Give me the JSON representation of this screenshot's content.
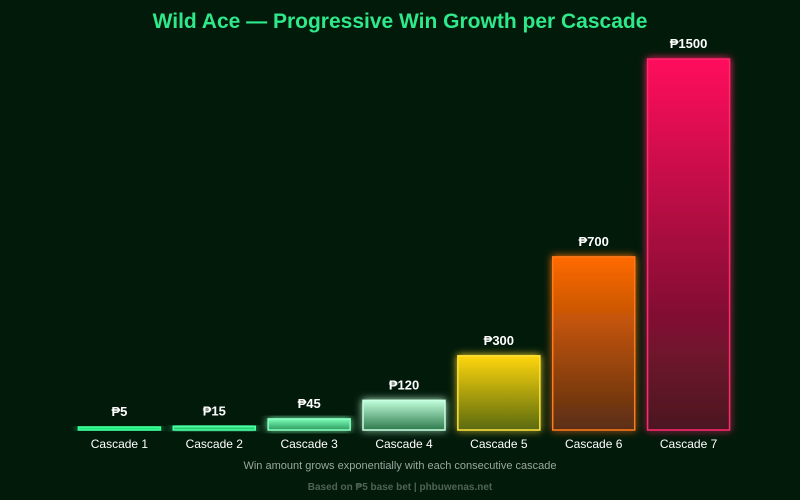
{
  "chart_data": {
    "type": "bar",
    "title": "Wild Ace — Progressive Win Growth per Cascade",
    "subtitle": "Win amount grows exponentially with each consecutive cascade",
    "footer": "Based on ₱5 base bet | phbuwenas.net",
    "xlabel": "",
    "ylabel": "",
    "categories": [
      "Cascade 1",
      "Cascade 2",
      "Cascade 3",
      "Cascade 4",
      "Cascade 5",
      "Cascade 6",
      "Cascade 7"
    ],
    "values": [
      5,
      15,
      45,
      120,
      300,
      700,
      1500
    ],
    "value_labels": [
      "₱5",
      "₱15",
      "₱45",
      "₱120",
      "₱300",
      "₱700",
      "₱1500"
    ],
    "ylim": [
      0,
      1500
    ],
    "grid": false,
    "legend": "none",
    "colors": {
      "background": "#021a0a",
      "title": "#2ee88a",
      "bars": [
        {
          "top": "#2bff8c",
          "bottom": "#1fc26a",
          "stroke": "#3dff9a"
        },
        {
          "top": "#3dff9a",
          "bottom": "#1fa95c",
          "stroke": "#4cffa4"
        },
        {
          "top": "#7dffb9",
          "bottom": "#2b9a5e",
          "stroke": "#8affc0"
        },
        {
          "top": "#c2ffdc",
          "bottom": "#2e7a4d",
          "stroke": "#c8ffe0"
        },
        {
          "top": "#ffd60a",
          "bottom": "#5a6a12",
          "stroke": "#ffe23a"
        },
        {
          "top": "#ff6a00",
          "bottom": "#5a2e14",
          "stroke": "#ff7a1a"
        },
        {
          "top": "#ff0a5c",
          "bottom": "#4a1420",
          "stroke": "#ff2a70"
        }
      ]
    }
  }
}
